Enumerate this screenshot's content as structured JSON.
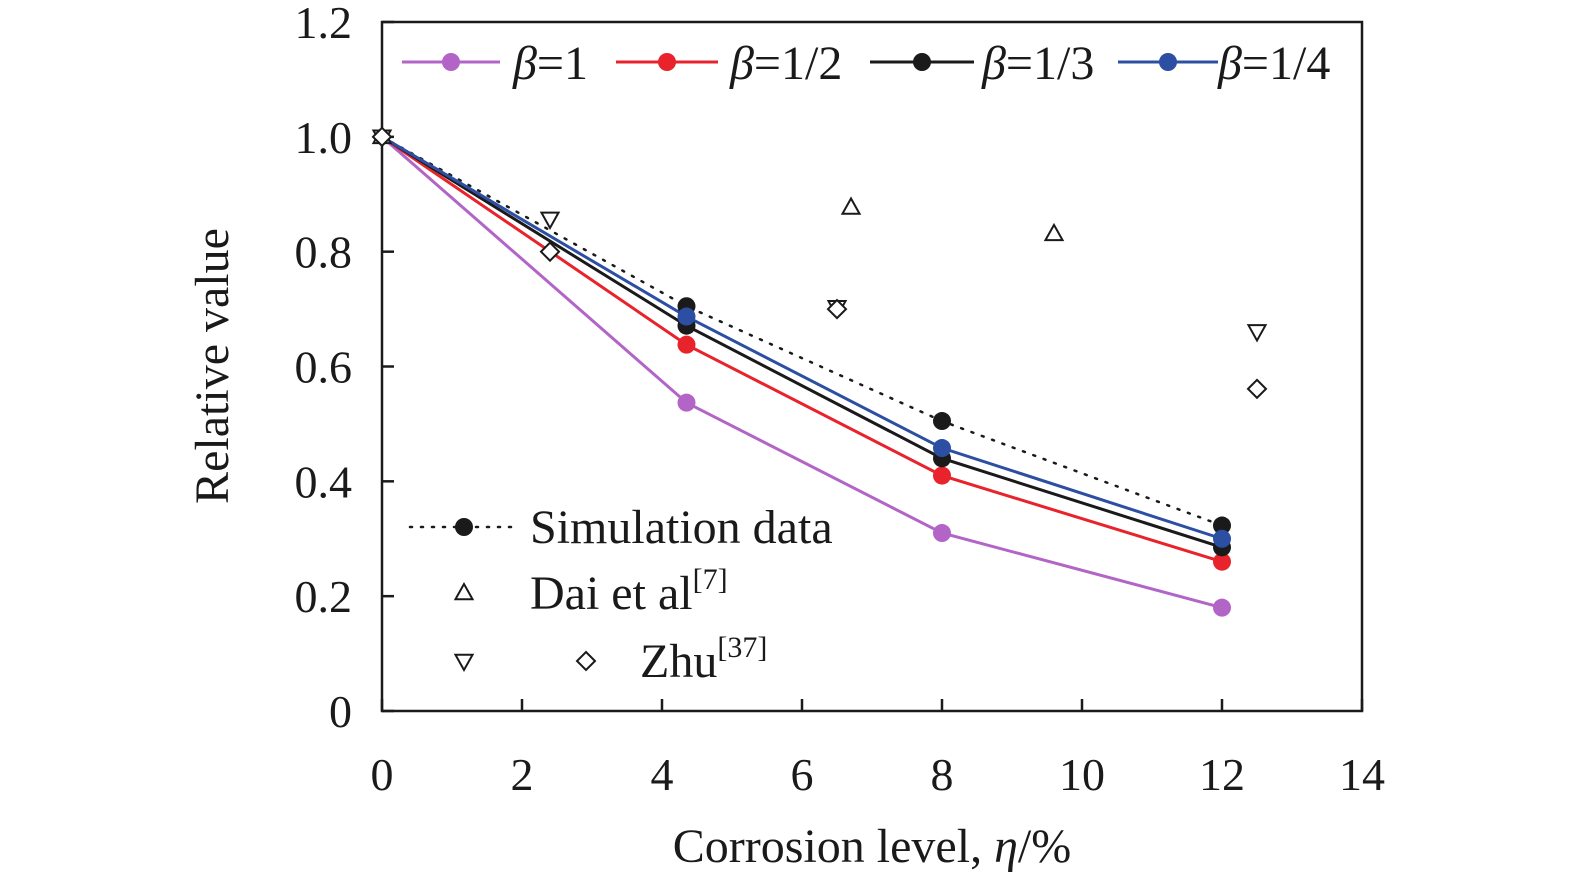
{
  "chart_data": {
    "type": "line",
    "xlabel": "Corrosion level, ",
    "xlabel_var": "η",
    "xlabel_unit": "/%",
    "ylabel": "Relative value",
    "xlim": [
      0,
      14
    ],
    "ylim": [
      0,
      1.2
    ],
    "x_ticks": [
      "0",
      "2",
      "4",
      "6",
      "8",
      "10",
      "12",
      "14"
    ],
    "y_ticks": [
      "0",
      "0.2",
      "0.4",
      "0.6",
      "0.8",
      "1.0",
      "1.2"
    ],
    "grid": false,
    "legend_position": "top",
    "beta_symbol": "β",
    "series": [
      {
        "name": "=1",
        "color": "#b265c6",
        "x": [
          0,
          4.35,
          8,
          12
        ],
        "y": [
          1.0,
          0.537,
          0.31,
          0.18
        ]
      },
      {
        "name": "=1/2",
        "color": "#e8232b",
        "x": [
          0,
          4.35,
          8,
          12
        ],
        "y": [
          1.0,
          0.638,
          0.41,
          0.26
        ]
      },
      {
        "name": "=1/3",
        "color": "#1a1a1a",
        "x": [
          0,
          4.35,
          8,
          12
        ],
        "y": [
          1.0,
          0.671,
          0.44,
          0.285
        ]
      },
      {
        "name": "=1/4",
        "color": "#2c4fa3",
        "x": [
          0,
          4.35,
          8,
          12
        ],
        "y": [
          1.0,
          0.687,
          0.458,
          0.3
        ]
      }
    ],
    "simulation": {
      "name": "Simulation data",
      "color": "#1a1a1a",
      "x": [
        0,
        4.35,
        8,
        12
      ],
      "y": [
        1.0,
        0.705,
        0.505,
        0.323
      ]
    },
    "dai": {
      "name": "Dai  et al",
      "ref": "[7]",
      "x": [
        0,
        6.7,
        9.6
      ],
      "y": [
        1.0,
        0.877,
        0.831
      ]
    },
    "zhu": {
      "name": "Zhu",
      "ref": "[37]",
      "tri_down_x": [
        0,
        2.4,
        6.5,
        12.5
      ],
      "tri_down_y": [
        1.0,
        0.857,
        0.703,
        0.661
      ],
      "diamond_x": [
        0,
        2.4,
        6.5,
        12.5
      ],
      "diamond_y": [
        1.0,
        0.8,
        0.7,
        0.561
      ]
    }
  }
}
